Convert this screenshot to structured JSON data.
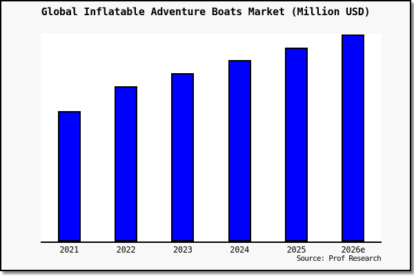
{
  "chart_data": {
    "type": "bar",
    "title": "Global Inflatable Adventure Boats Market (Million USD)",
    "categories": [
      "2021",
      "2022",
      "2023",
      "2024",
      "2025",
      "2026e"
    ],
    "values": [
      62.7,
      74.9,
      81.2,
      87.5,
      93.4,
      99.8
    ],
    "xlabel": "",
    "ylabel": "",
    "ylim": [
      0,
      100
    ],
    "y_axis_ticks_visible": false,
    "grid": false,
    "legend": "none"
  },
  "source": {
    "label": "Source: Prof Research"
  },
  "colors": {
    "bar_fill": "#0000ff",
    "bar_edge": "#000000",
    "frame_background": "#f8f8f8",
    "plot_background": "#ffffff",
    "axis": "#000000",
    "text": "#000000",
    "shadow": "#8a8a8a"
  }
}
